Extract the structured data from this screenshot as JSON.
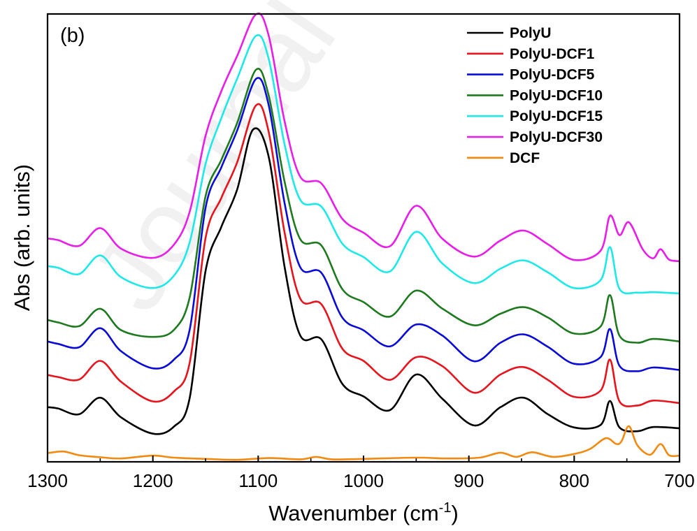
{
  "watermark": "Journal",
  "chart_data": {
    "type": "line",
    "panel_label": "(b)",
    "xlabel": "Wavenumber (cm",
    "xlabel_sup": "-1",
    "xlabel_end": ")",
    "ylabel": "Abs (arb. units)",
    "xlim": [
      1300,
      700
    ],
    "x_reversed": true,
    "ylim": [
      0,
      100
    ],
    "y_tick_labels": false,
    "xticks": [
      {
        "value": 1300,
        "label": "1300"
      },
      {
        "value": 1200,
        "label": "1200"
      },
      {
        "value": 1100,
        "label": "1100"
      },
      {
        "value": 1000,
        "label": "1000"
      },
      {
        "value": 900,
        "label": "900"
      },
      {
        "value": 800,
        "label": "800"
      },
      {
        "value": 700,
        "label": "700"
      }
    ],
    "legend_position": "top-right",
    "series": [
      {
        "name": "PolyU",
        "color": "#000000",
        "points": [
          [
            1300,
            12.7
          ],
          [
            1290,
            12.4
          ],
          [
            1270,
            11.0
          ],
          [
            1250,
            15.0
          ],
          [
            1230,
            10.2
          ],
          [
            1200,
            6.3
          ],
          [
            1180,
            8.0
          ],
          [
            1165,
            15.0
          ],
          [
            1150,
            45.6
          ],
          [
            1135,
            56.3
          ],
          [
            1120,
            65.3
          ],
          [
            1105,
            79.8
          ],
          [
            1090,
            73.2
          ],
          [
            1075,
            46.7
          ],
          [
            1060,
            30.0
          ],
          [
            1040,
            29.1
          ],
          [
            1020,
            18.3
          ],
          [
            1000,
            15.3
          ],
          [
            975,
            12.0
          ],
          [
            950,
            20.6
          ],
          [
            925,
            14.7
          ],
          [
            895,
            8.3
          ],
          [
            870,
            12.7
          ],
          [
            848,
            15.0
          ],
          [
            825,
            11.0
          ],
          [
            800,
            7.8
          ],
          [
            775,
            8.4
          ],
          [
            766,
            14.2
          ],
          [
            757,
            7.8
          ],
          [
            740,
            6.9
          ],
          [
            725,
            7.9
          ],
          [
            700,
            7.6
          ]
        ]
      },
      {
        "name": "PolyU-DCF1",
        "color": "#e8141c",
        "points": [
          [
            1300,
            20.5
          ],
          [
            1290,
            20.0
          ],
          [
            1270,
            19.4
          ],
          [
            1250,
            23.9
          ],
          [
            1230,
            18.8
          ],
          [
            1200,
            14.1
          ],
          [
            1180,
            16.5
          ],
          [
            1165,
            23.5
          ],
          [
            1150,
            53.6
          ],
          [
            1135,
            63.3
          ],
          [
            1120,
            71.9
          ],
          [
            1102,
            85.7
          ],
          [
            1090,
            79.2
          ],
          [
            1075,
            55.0
          ],
          [
            1060,
            38.9
          ],
          [
            1040,
            37.6
          ],
          [
            1020,
            26.8
          ],
          [
            1000,
            23.9
          ],
          [
            975,
            19.3
          ],
          [
            950,
            24.8
          ],
          [
            925,
            22.6
          ],
          [
            895,
            16.2
          ],
          [
            870,
            20.6
          ],
          [
            848,
            22.4
          ],
          [
            825,
            19.3
          ],
          [
            800,
            15.2
          ],
          [
            775,
            16.7
          ],
          [
            766,
            24.2
          ],
          [
            757,
            14.1
          ],
          [
            740,
            13.1
          ],
          [
            725,
            14.3
          ],
          [
            700,
            13.7
          ]
        ]
      },
      {
        "name": "PolyU-DCF5",
        "color": "#0b0bd8",
        "points": [
          [
            1300,
            28.6
          ],
          [
            1290,
            28.0
          ],
          [
            1270,
            27.2
          ],
          [
            1250,
            31.8
          ],
          [
            1230,
            26.2
          ],
          [
            1200,
            22.1
          ],
          [
            1180,
            24.2
          ],
          [
            1165,
            31.5
          ],
          [
            1150,
            60.9
          ],
          [
            1135,
            70.7
          ],
          [
            1120,
            79.6
          ],
          [
            1102,
            92.1
          ],
          [
            1090,
            85.7
          ],
          [
            1075,
            62.1
          ],
          [
            1060,
            46.5
          ],
          [
            1040,
            45.2
          ],
          [
            1020,
            34.3
          ],
          [
            1000,
            31.3
          ],
          [
            975,
            27.4
          ],
          [
            950,
            32.7
          ],
          [
            925,
            30.0
          ],
          [
            895,
            23.8
          ],
          [
            870,
            28.3
          ],
          [
            848,
            30.3
          ],
          [
            825,
            27.3
          ],
          [
            800,
            23.2
          ],
          [
            775,
            24.8
          ],
          [
            766,
            31.6
          ],
          [
            757,
            22.7
          ],
          [
            740,
            21.4
          ],
          [
            725,
            22.3
          ],
          [
            700,
            21.7
          ]
        ]
      },
      {
        "name": "PolyU-DCF10",
        "color": "#1e7a1e",
        "points": [
          [
            1300,
            33.8
          ],
          [
            1290,
            33.2
          ],
          [
            1270,
            32.3
          ],
          [
            1250,
            36.5
          ],
          [
            1230,
            31.3
          ],
          [
            1200,
            29.7
          ],
          [
            1180,
            31.4
          ],
          [
            1165,
            39.3
          ],
          [
            1150,
            63.7
          ],
          [
            1135,
            72.5
          ],
          [
            1120,
            81.4
          ],
          [
            1102,
            94.3
          ],
          [
            1090,
            88.0
          ],
          [
            1075,
            67.3
          ],
          [
            1060,
            53.3
          ],
          [
            1040,
            51.8
          ],
          [
            1020,
            41.2
          ],
          [
            1000,
            38.1
          ],
          [
            975,
            34.6
          ],
          [
            950,
            40.9
          ],
          [
            925,
            36.5
          ],
          [
            895,
            32.5
          ],
          [
            870,
            35.3
          ],
          [
            848,
            36.9
          ],
          [
            825,
            34.4
          ],
          [
            800,
            30.5
          ],
          [
            775,
            32.2
          ],
          [
            766,
            39.8
          ],
          [
            757,
            30.0
          ],
          [
            740,
            28.3
          ],
          [
            725,
            29.2
          ],
          [
            700,
            28.6
          ]
        ]
      },
      {
        "name": "PolyU-DCF15",
        "color": "#1ee8e8",
        "points": [
          [
            1300,
            46.8
          ],
          [
            1290,
            46.4
          ],
          [
            1270,
            44.9
          ],
          [
            1250,
            49.4
          ],
          [
            1230,
            44.1
          ],
          [
            1200,
            41.5
          ],
          [
            1180,
            44.5
          ],
          [
            1165,
            52.6
          ],
          [
            1150,
            71.5
          ],
          [
            1135,
            82.6
          ],
          [
            1120,
            92.1
          ],
          [
            1102,
            102.5
          ],
          [
            1090,
            96.9
          ],
          [
            1075,
            76.3
          ],
          [
            1060,
            62.8
          ],
          [
            1040,
            61.2
          ],
          [
            1020,
            52.2
          ],
          [
            1000,
            49.0
          ],
          [
            975,
            45.5
          ],
          [
            950,
            55.1
          ],
          [
            925,
            47.4
          ],
          [
            895,
            42.7
          ],
          [
            870,
            46.2
          ],
          [
            848,
            48.2
          ],
          [
            825,
            45.3
          ],
          [
            800,
            41.5
          ],
          [
            775,
            43.4
          ],
          [
            766,
            51.4
          ],
          [
            757,
            41.3
          ],
          [
            740,
            40.4
          ],
          [
            725,
            40.5
          ],
          [
            700,
            40.2
          ]
        ]
      },
      {
        "name": "PolyU-DCF30",
        "color": "#e81ee8",
        "points": [
          [
            1300,
            53.5
          ],
          [
            1290,
            53.1
          ],
          [
            1270,
            51.7
          ],
          [
            1250,
            56.0
          ],
          [
            1230,
            51.0
          ],
          [
            1200,
            48.8
          ],
          [
            1180,
            52.0
          ],
          [
            1165,
            60.0
          ],
          [
            1150,
            78.3
          ],
          [
            1135,
            89.1
          ],
          [
            1120,
            97.6
          ],
          [
            1102,
            107.7
          ],
          [
            1090,
            102.5
          ],
          [
            1075,
            81.9
          ],
          [
            1060,
            68.4
          ],
          [
            1040,
            66.8
          ],
          [
            1020,
            58.2
          ],
          [
            1000,
            54.9
          ],
          [
            975,
            51.6
          ],
          [
            950,
            61.4
          ],
          [
            925,
            53.4
          ],
          [
            895,
            49.1
          ],
          [
            870,
            53.0
          ],
          [
            848,
            55.4
          ],
          [
            825,
            52.1
          ],
          [
            800,
            48.3
          ],
          [
            775,
            50.5
          ],
          [
            766,
            59.0
          ],
          [
            757,
            54.3
          ],
          [
            748,
            57.4
          ],
          [
            735,
            50.9
          ],
          [
            725,
            48.7
          ],
          [
            718,
            50.9
          ],
          [
            710,
            48.4
          ],
          [
            700,
            48.0
          ]
        ]
      },
      {
        "name": "DCF",
        "color": "#f28a10",
        "points": [
          [
            1300,
            1.6
          ],
          [
            1285,
            2.0
          ],
          [
            1270,
            1.1
          ],
          [
            1250,
            0.6
          ],
          [
            1230,
            0.3
          ],
          [
            1200,
            1.0
          ],
          [
            1180,
            0.5
          ],
          [
            1150,
            0.2
          ],
          [
            1120,
            0.0
          ],
          [
            1090,
            0.4
          ],
          [
            1060,
            0.1
          ],
          [
            1045,
            0.7
          ],
          [
            1030,
            0.1
          ],
          [
            1000,
            0.2
          ],
          [
            950,
            0.5
          ],
          [
            920,
            0.3
          ],
          [
            890,
            0.5
          ],
          [
            870,
            1.7
          ],
          [
            855,
            0.7
          ],
          [
            840,
            1.8
          ],
          [
            820,
            0.7
          ],
          [
            800,
            1.4
          ],
          [
            785,
            2.6
          ],
          [
            770,
            5.2
          ],
          [
            760,
            3.8
          ],
          [
            755,
            4.5
          ],
          [
            748,
            8.1
          ],
          [
            740,
            3.5
          ],
          [
            728,
            1.2
          ],
          [
            718,
            3.8
          ],
          [
            710,
            1.1
          ],
          [
            700,
            1.0
          ]
        ]
      }
    ]
  }
}
